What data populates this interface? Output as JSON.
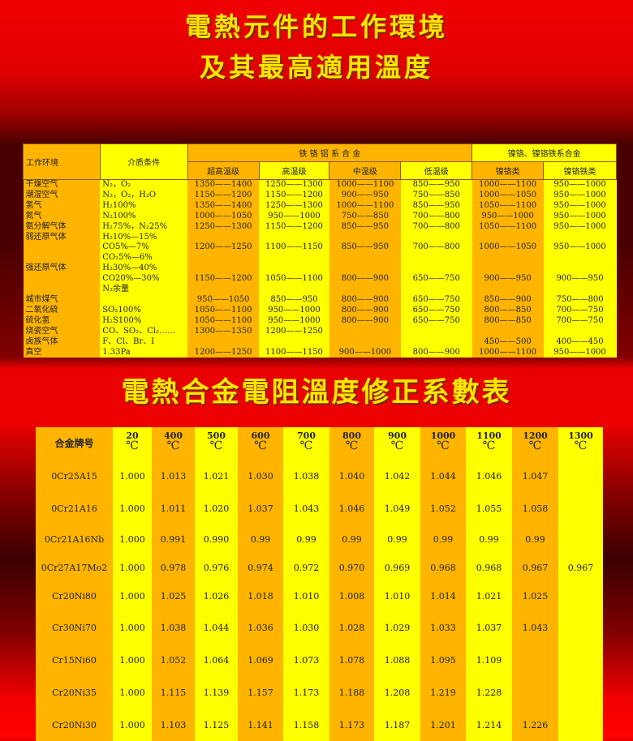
{
  "titles": {
    "line1": "電熱元件的工作環境",
    "line2": "及其最高適用溫度",
    "table2_title": "電熱合金電阻溫度修正系數表"
  },
  "colors": {
    "orange_column": "#ffb400",
    "yellow_column": "#ffff00",
    "title_text": "#ffe600",
    "background": "#e00000"
  },
  "env_table": {
    "header": {
      "env": "工作环境",
      "medium": "介质条件",
      "group_fecral": "铁 铬 铝 系 合 金",
      "group_nicr": "镍铬、镍铬铁系合金",
      "sub": [
        "超高温级",
        "高温级",
        "中温级",
        "低温级",
        "镍铬类",
        "镍铬铁类"
      ]
    },
    "lines": [
      {
        "env": "干燥空气",
        "medium": "N₂，O₂",
        "v": [
          "1350——1400",
          "1250——1300",
          "1000——1100",
          "850——950",
          "1000——1100",
          "950——1000"
        ]
      },
      {
        "env": "潮湿空气",
        "medium": "N₂，O₂，H₂O",
        "v": [
          "1150——1200",
          "1150——1200",
          "900——950",
          "750——850",
          "1000——1050",
          "950——1000"
        ]
      },
      {
        "env": "氢气",
        "medium": "H₂100%",
        "v": [
          "1350——1400",
          "1250——1300",
          "1000——1100",
          "850——950",
          "1050——1100",
          "950——1000"
        ]
      },
      {
        "env": "氮气",
        "medium": "N₂100%",
        "v": [
          "1000——1050",
          "950——1000",
          "750——850",
          "700——800",
          "950——1000",
          "950——1000"
        ]
      },
      {
        "env": "氨分解气体",
        "medium": "H₂75%，N₂25%",
        "v": [
          "1250——1300",
          "1150——1200",
          "850——950",
          "700——800",
          "1050——1100",
          "950——1000"
        ]
      },
      {
        "env": "弱还原气体",
        "medium": "H₂10%—15%",
        "v": [
          "",
          "",
          "",
          "",
          "",
          ""
        ]
      },
      {
        "env": "",
        "medium": "CO5%—7%",
        "v": [
          "1200——1250",
          "1100——1150",
          "850——950",
          "700——800",
          "1000——1050",
          "950——1000"
        ]
      },
      {
        "env": "",
        "medium": "CO₂5%—6%",
        "v": [
          "",
          "",
          "",
          "",
          "",
          ""
        ]
      },
      {
        "env": "强还原气体",
        "medium": "H₂30%—40%",
        "v": [
          "",
          "",
          "",
          "",
          "",
          ""
        ]
      },
      {
        "env": "",
        "medium": "CO20%—30%",
        "v": [
          "1150——1200",
          "1050——1100",
          "800——900",
          "650——750",
          "900——950",
          "900——950"
        ]
      },
      {
        "env": "",
        "medium": "N₂余量",
        "v": [
          "",
          "",
          "",
          "",
          "",
          ""
        ]
      },
      {
        "env": "城市煤气",
        "medium": "",
        "v": [
          "950——1050",
          "850——950",
          "800——900",
          "650——750",
          "850——900",
          "750——800"
        ]
      },
      {
        "env": "二氧化硫",
        "medium": "SO₂100%",
        "v": [
          "1050——1100",
          "950——1000",
          "800——900",
          "650——750",
          "800——850",
          "700——750"
        ]
      },
      {
        "env": "硫化氢",
        "medium": "H₂S100%",
        "v": [
          "1050——1100",
          "950——1000",
          "800——900",
          "650——750",
          "800——850",
          "700——750"
        ]
      },
      {
        "env": "烧瓷空气",
        "medium": "CO、SO₂、Cl₂……",
        "v": [
          "1300——1350",
          "1200——1250",
          "",
          "",
          "",
          ""
        ]
      },
      {
        "env": "卤族气体",
        "medium": "F、Cl、Br、I",
        "v": [
          "",
          "",
          "",
          "",
          "450——500",
          "400——450"
        ]
      },
      {
        "env": "真空",
        "medium": "1.33Pa",
        "v": [
          "1200——1250",
          "1100——1150",
          "900——1000",
          "800——900",
          "1000——1100",
          "950——1000"
        ]
      }
    ]
  },
  "coef_table": {
    "name_header": "合金牌号",
    "unit": "℃",
    "temps": [
      "20",
      "400",
      "500",
      "600",
      "700",
      "800",
      "900",
      "1000",
      "1100",
      "1200",
      "1300"
    ],
    "rows": [
      {
        "alloy": "0Cr25A15",
        "v": [
          "1.000",
          "1.013",
          "1.021",
          "1.030",
          "1.038",
          "1.040",
          "1.042",
          "1.044",
          "1.046",
          "1.047",
          ""
        ]
      },
      {
        "alloy": "0Cr21A16",
        "v": [
          "1.000",
          "1.011",
          "1.020",
          "1.037",
          "1.043",
          "1.046",
          "1.049",
          "1.052",
          "1.055",
          "1.058",
          ""
        ]
      },
      {
        "alloy": "0Cr21A16Nb",
        "v": [
          "1.000",
          "0.991",
          "0.990",
          "0.99",
          "0.99",
          "0.99",
          "0.99",
          "0.99",
          "0.99",
          "0.99",
          ""
        ]
      },
      {
        "alloy": "0Cr27A17Mo2",
        "v": [
          "1.000",
          "0.978",
          "0.976",
          "0.974",
          "0.972",
          "0.970",
          "0.969",
          "0.968",
          "0.968",
          "0.967",
          "0.967"
        ]
      },
      {
        "alloy": "Cr20Ni80",
        "v": [
          "1.000",
          "1.025",
          "1.026",
          "1.018",
          "1.010",
          "1.008",
          "1.010",
          "1.014",
          "1.021",
          "1.025",
          ""
        ]
      },
      {
        "alloy": "Cr30Ni70",
        "v": [
          "1.000",
          "1.038",
          "1.044",
          "1.036",
          "1.030",
          "1.028",
          "1.029",
          "1.033",
          "1.037",
          "1.043",
          ""
        ]
      },
      {
        "alloy": "Cr15Ni60",
        "v": [
          "1.000",
          "1.052",
          "1.064",
          "1.069",
          "1.073",
          "1.078",
          "1.088",
          "1.095",
          "1.109",
          "",
          ""
        ]
      },
      {
        "alloy": "Cr20Ni35",
        "v": [
          "1.000",
          "1.115",
          "1.139",
          "1.157",
          "1.173",
          "1.188",
          "1.208",
          "1.219",
          "1.228",
          "",
          ""
        ]
      },
      {
        "alloy": "Cr20Ni30",
        "v": [
          "1.000",
          "1.103",
          "1.125",
          "1.141",
          "1.158",
          "1.173",
          "1.187",
          "1.201",
          "1.214",
          "1.226",
          ""
        ]
      }
    ]
  }
}
